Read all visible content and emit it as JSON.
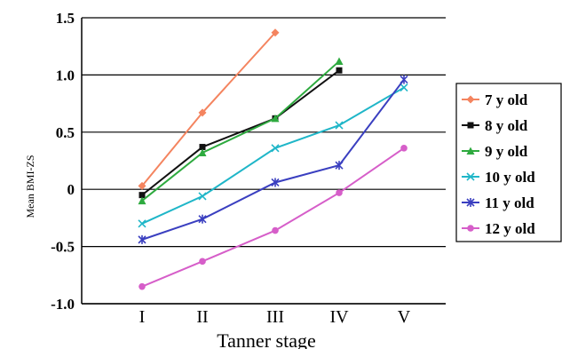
{
  "chart_data": {
    "type": "line",
    "xlabel": "Tanner stage",
    "ylabel": "Mean BMI-ZS",
    "categories": [
      "I",
      "II",
      "III",
      "IV",
      "V"
    ],
    "ylim": [
      -1.0,
      1.5
    ],
    "yticks": [
      "1.5",
      "1.0",
      "0.5",
      "0",
      "-0.5",
      "-1.0"
    ],
    "ytick_values": [
      1.5,
      1.0,
      0.5,
      0,
      -0.5,
      -1.0
    ],
    "grid": true,
    "legend_position": "right",
    "series": [
      {
        "name": "7 y old",
        "color": "#f4845f",
        "marker": "diamond",
        "values": [
          0.03,
          0.67,
          1.37,
          null,
          null
        ]
      },
      {
        "name": "8 y old",
        "color": "#111111",
        "marker": "square",
        "values": [
          -0.05,
          0.37,
          0.62,
          1.04,
          null
        ]
      },
      {
        "name": "9 y old",
        "color": "#2eaa3f",
        "marker": "triangle",
        "values": [
          -0.1,
          0.32,
          0.62,
          1.12,
          null
        ]
      },
      {
        "name": "10 y old",
        "color": "#1fb6c8",
        "marker": "x",
        "values": [
          -0.3,
          -0.06,
          0.36,
          0.56,
          0.89
        ]
      },
      {
        "name": "11 y old",
        "color": "#3a3fc0",
        "marker": "star",
        "values": [
          -0.44,
          -0.26,
          0.06,
          0.21,
          0.96
        ]
      },
      {
        "name": "12 y old",
        "color": "#d65ec9",
        "marker": "circle",
        "values": [
          -0.85,
          -0.63,
          -0.36,
          -0.03,
          0.36
        ]
      }
    ]
  }
}
